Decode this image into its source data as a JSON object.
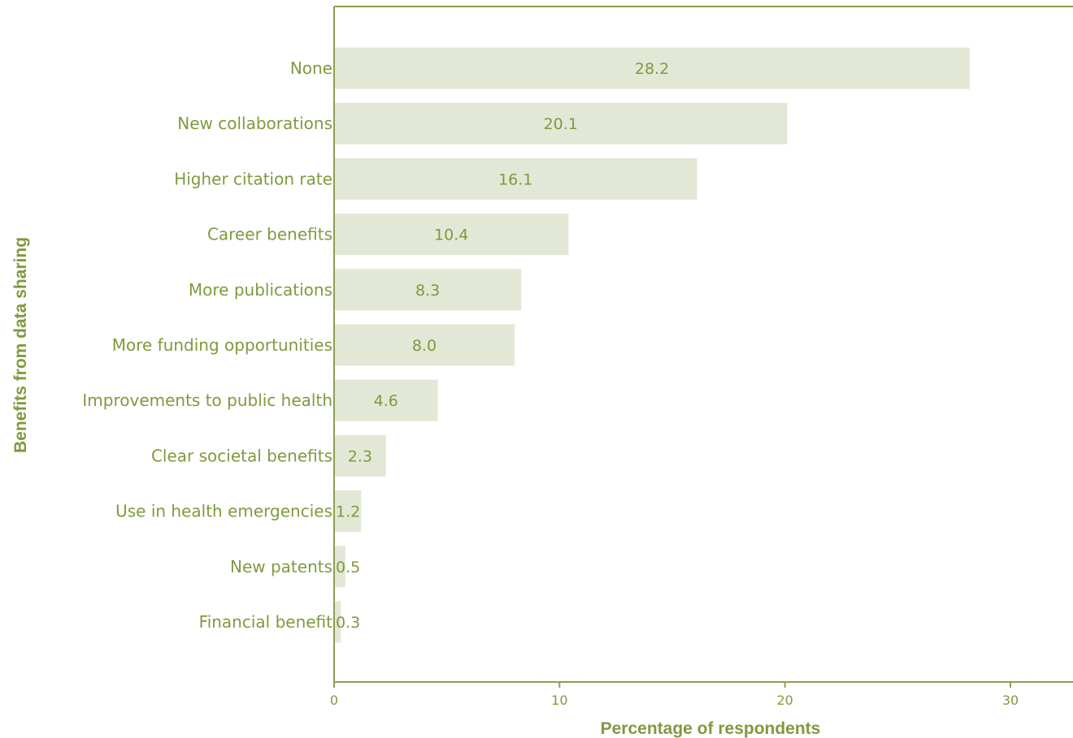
{
  "chart_data": {
    "type": "bar",
    "orientation": "horizontal",
    "categories": [
      "None",
      "New collaborations",
      "Higher citation rate",
      "Career benefits",
      "More publications",
      "More funding opportunities",
      "Improvements to public health",
      "Clear societal benefits",
      "Use in health emergencies",
      "New patents",
      "Financial benefit"
    ],
    "values": [
      28.2,
      20.1,
      16.1,
      10.4,
      8.3,
      8.0,
      4.6,
      2.3,
      1.2,
      0.5,
      0.3
    ],
    "value_labels": [
      "28.2",
      "20.1",
      "16.1",
      "10.4",
      "8.3",
      "8.0",
      "4.6",
      "2.3",
      "1.2",
      "0.5",
      "0.3"
    ],
    "xlabel": "Percentage of respondents",
    "ylabel": "Benefits from data sharing",
    "xlim": [
      0,
      33
    ],
    "xticks": [
      0,
      10,
      20,
      30
    ],
    "xtick_labels": [
      "0",
      "10",
      "20",
      "30"
    ],
    "grid": false,
    "legend": "none",
    "colors": {
      "bar": "#e2e8d5",
      "axis": "#8aa04f",
      "text": "#7f9a3e"
    }
  }
}
